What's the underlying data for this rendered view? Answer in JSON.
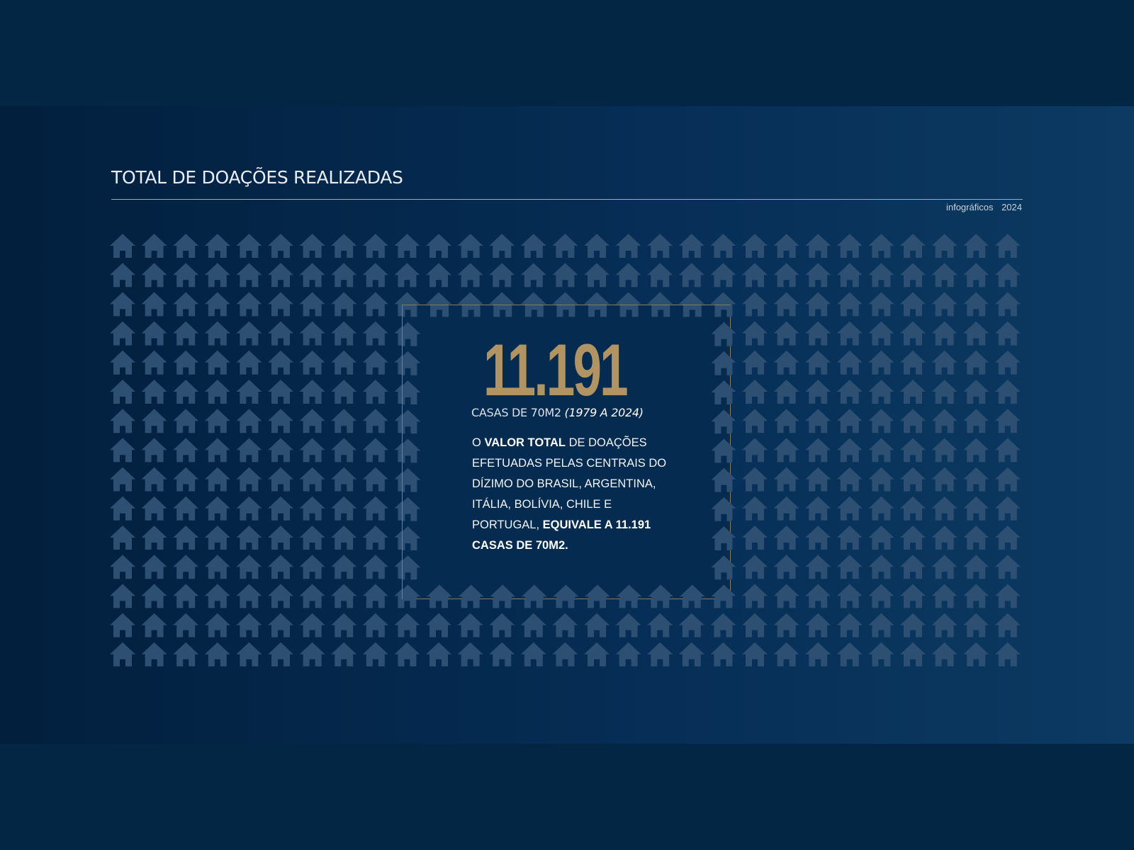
{
  "header": {
    "title": "TOTAL DE DOAÇÕES REALIZADAS",
    "source_label": "infográficos",
    "year": "2024"
  },
  "highlight": {
    "number": "11.191",
    "unit": "CASAS DE 70M2",
    "period": "(1979 A 2024)"
  },
  "description": {
    "part1": "O",
    "bold1": "VALOR TOTAL",
    "part2": "DE DOAÇÕES EFETUADAS PELAS CENTRAIS DO DÍZIMO DO BRASIL, ARGENTINA, ITÁLIA, BOLÍVIA, CHILE E PORTUGAL,",
    "bold2": "EQUIVALE A 11.191 CASAS DE 70M2."
  },
  "pictogram": {
    "icon": "house-icon",
    "color": "#2c4f72",
    "columns": 30,
    "rows": 15
  },
  "colors": {
    "accent_gold": "#b29463",
    "background_navy": "#062b50",
    "panel_border": "#8a7d5e"
  }
}
